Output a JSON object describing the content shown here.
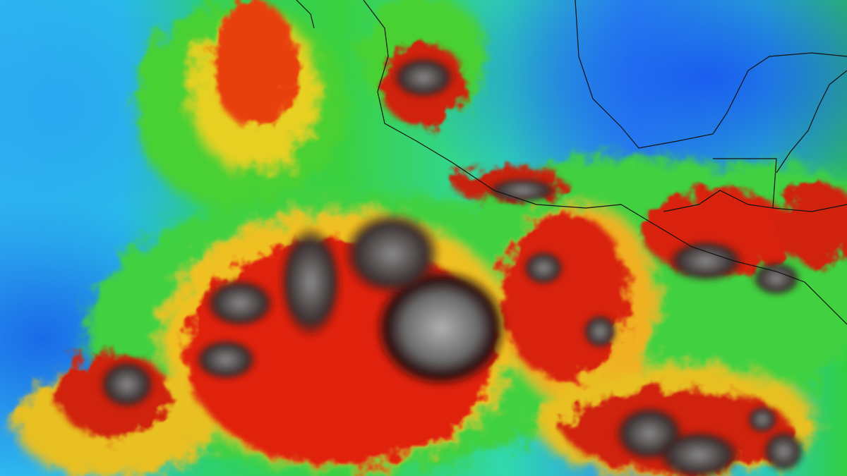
{
  "image": {
    "subject": "enhanced-infrared-satellite-image",
    "palette": {
      "clear": "#2aa8f0",
      "low_cloud": "#3ad040",
      "mid_cloud": "#f0e020",
      "high_cloud": "#e02010",
      "very_cold": "#300808",
      "coldest_tops": "#9a9a9a",
      "coastline": "#111111"
    }
  }
}
